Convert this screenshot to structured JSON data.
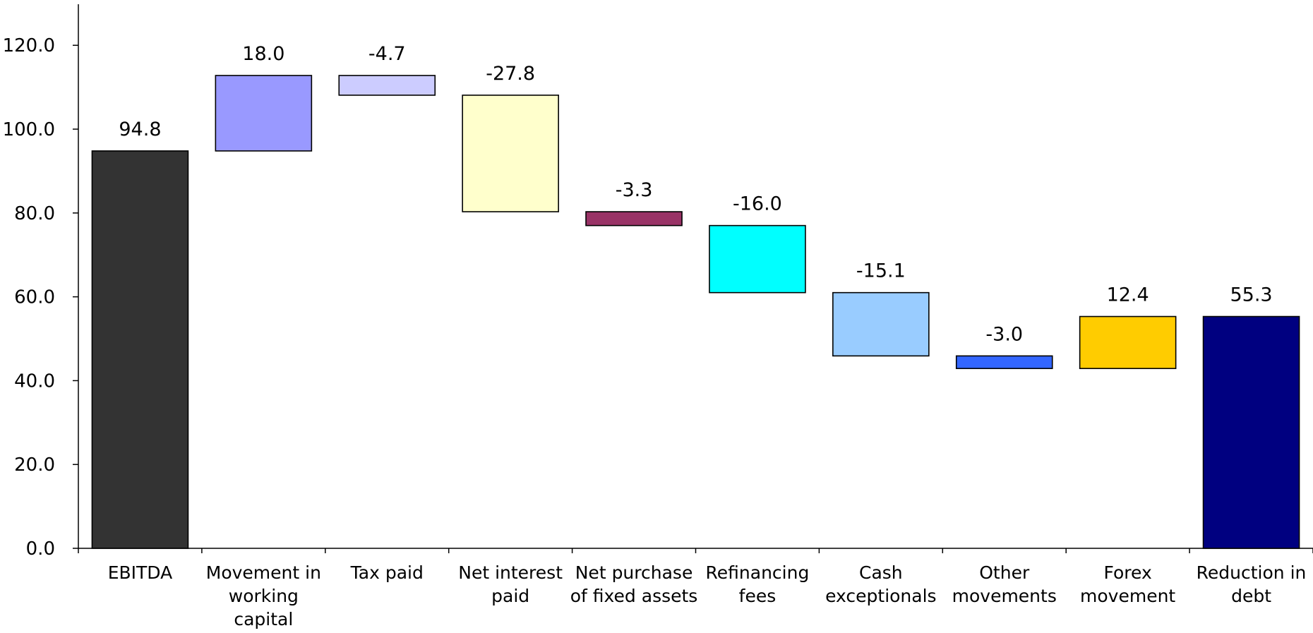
{
  "chart_data": {
    "type": "bar",
    "subtype": "waterfall",
    "title": "",
    "xlabel": "",
    "ylabel": "",
    "ylim": [
      0,
      130
    ],
    "y_ticks": [
      "0.0",
      "20.0",
      "40.0",
      "60.0",
      "80.0",
      "100.0",
      "120.0"
    ],
    "grid": false,
    "legend": "none",
    "categories": [
      "EBITDA",
      "Movement in\nworking\ncapital",
      "Tax paid",
      "Net interest\npaid",
      "Net purchase\nof fixed assets",
      "Refinancing\nfees",
      "Cash\nexceptionals",
      "Other\nmovements",
      "Forex\nmovement",
      "Reduction in\ndebt"
    ],
    "values": [
      94.8,
      18.0,
      -4.7,
      -27.8,
      -3.3,
      -16.0,
      -15.1,
      -3.0,
      12.4,
      55.3
    ],
    "value_labels": [
      "94.8",
      "18.0",
      "-4.7",
      "-27.8",
      "-3.3",
      "-16.0",
      "-15.1",
      "-3.0",
      "12.4",
      "55.3"
    ],
    "bar_kind": [
      "total",
      "delta",
      "delta",
      "delta",
      "delta",
      "delta",
      "delta",
      "delta",
      "delta",
      "total"
    ],
    "colors": [
      "#333333",
      "#9999FF",
      "#CCCCFF",
      "#FFFFCC",
      "#993366",
      "#00FFFF",
      "#99CCFF",
      "#3366FF",
      "#FFCC00",
      "#000080"
    ]
  }
}
